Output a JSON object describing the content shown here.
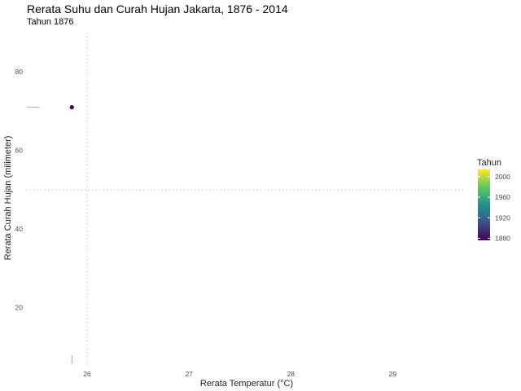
{
  "chart_data": {
    "type": "scatter",
    "title": "Rerata Suhu dan Curah Hujan Jakarta, 1876 - 2014",
    "subtitle": "Tahun 1876",
    "xlabel": "Rerata Temperatur (°C)",
    "ylabel": "Rerata Curah Hujan (milimeter)",
    "xlim": [
      25.4,
      29.7
    ],
    "ylim": [
      5,
      90
    ],
    "x_ticks": [
      26,
      27,
      28,
      29
    ],
    "y_ticks": [
      20,
      40,
      60,
      80
    ],
    "grid": false,
    "reference_lines": {
      "vertical_x": 26,
      "horizontal_y": 50
    },
    "points": [
      {
        "year": 1876,
        "x": 25.85,
        "y": 71
      }
    ],
    "rug": {
      "x": [
        25.85
      ],
      "y": [
        71
      ]
    },
    "legend": {
      "title": "Tahun",
      "position": "right",
      "type": "colorbar",
      "breaks": [
        1880,
        1920,
        1960,
        2000
      ],
      "range": [
        1876,
        2014
      ],
      "colors": [
        "#440154",
        "#3b528b",
        "#21918c",
        "#5ec962",
        "#fde725"
      ]
    }
  }
}
